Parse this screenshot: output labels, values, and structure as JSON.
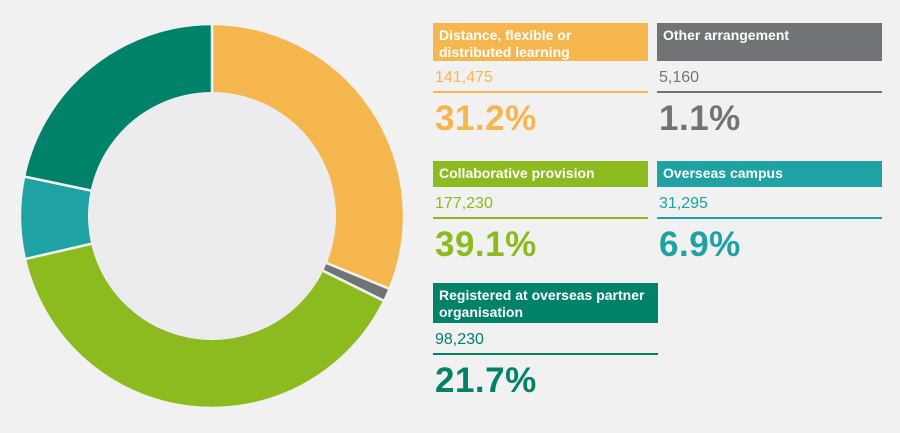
{
  "chart_data": {
    "type": "pie",
    "style": "donut",
    "segments": [
      {
        "label": "Distance, flexible or distributed learning",
        "count": "141,475",
        "percent_label": "31.2%",
        "value": 31.2,
        "color": "#f6b64e"
      },
      {
        "label": "Other arrangement",
        "count": "5,160",
        "percent_label": "1.1%",
        "value": 1.1,
        "color": "#717477"
      },
      {
        "label": "Collaborative provision",
        "count": "177,230",
        "percent_label": "39.1%",
        "value": 39.1,
        "color": "#8cbb1f"
      },
      {
        "label": "Overseas campus",
        "count": "31,295",
        "percent_label": "6.9%",
        "value": 6.9,
        "color": "#1ea2a3"
      },
      {
        "label": "Registered at overseas partner organisation",
        "count": "98,230",
        "percent_label": "21.7%",
        "value": 21.7,
        "color": "#00826a"
      }
    ]
  }
}
